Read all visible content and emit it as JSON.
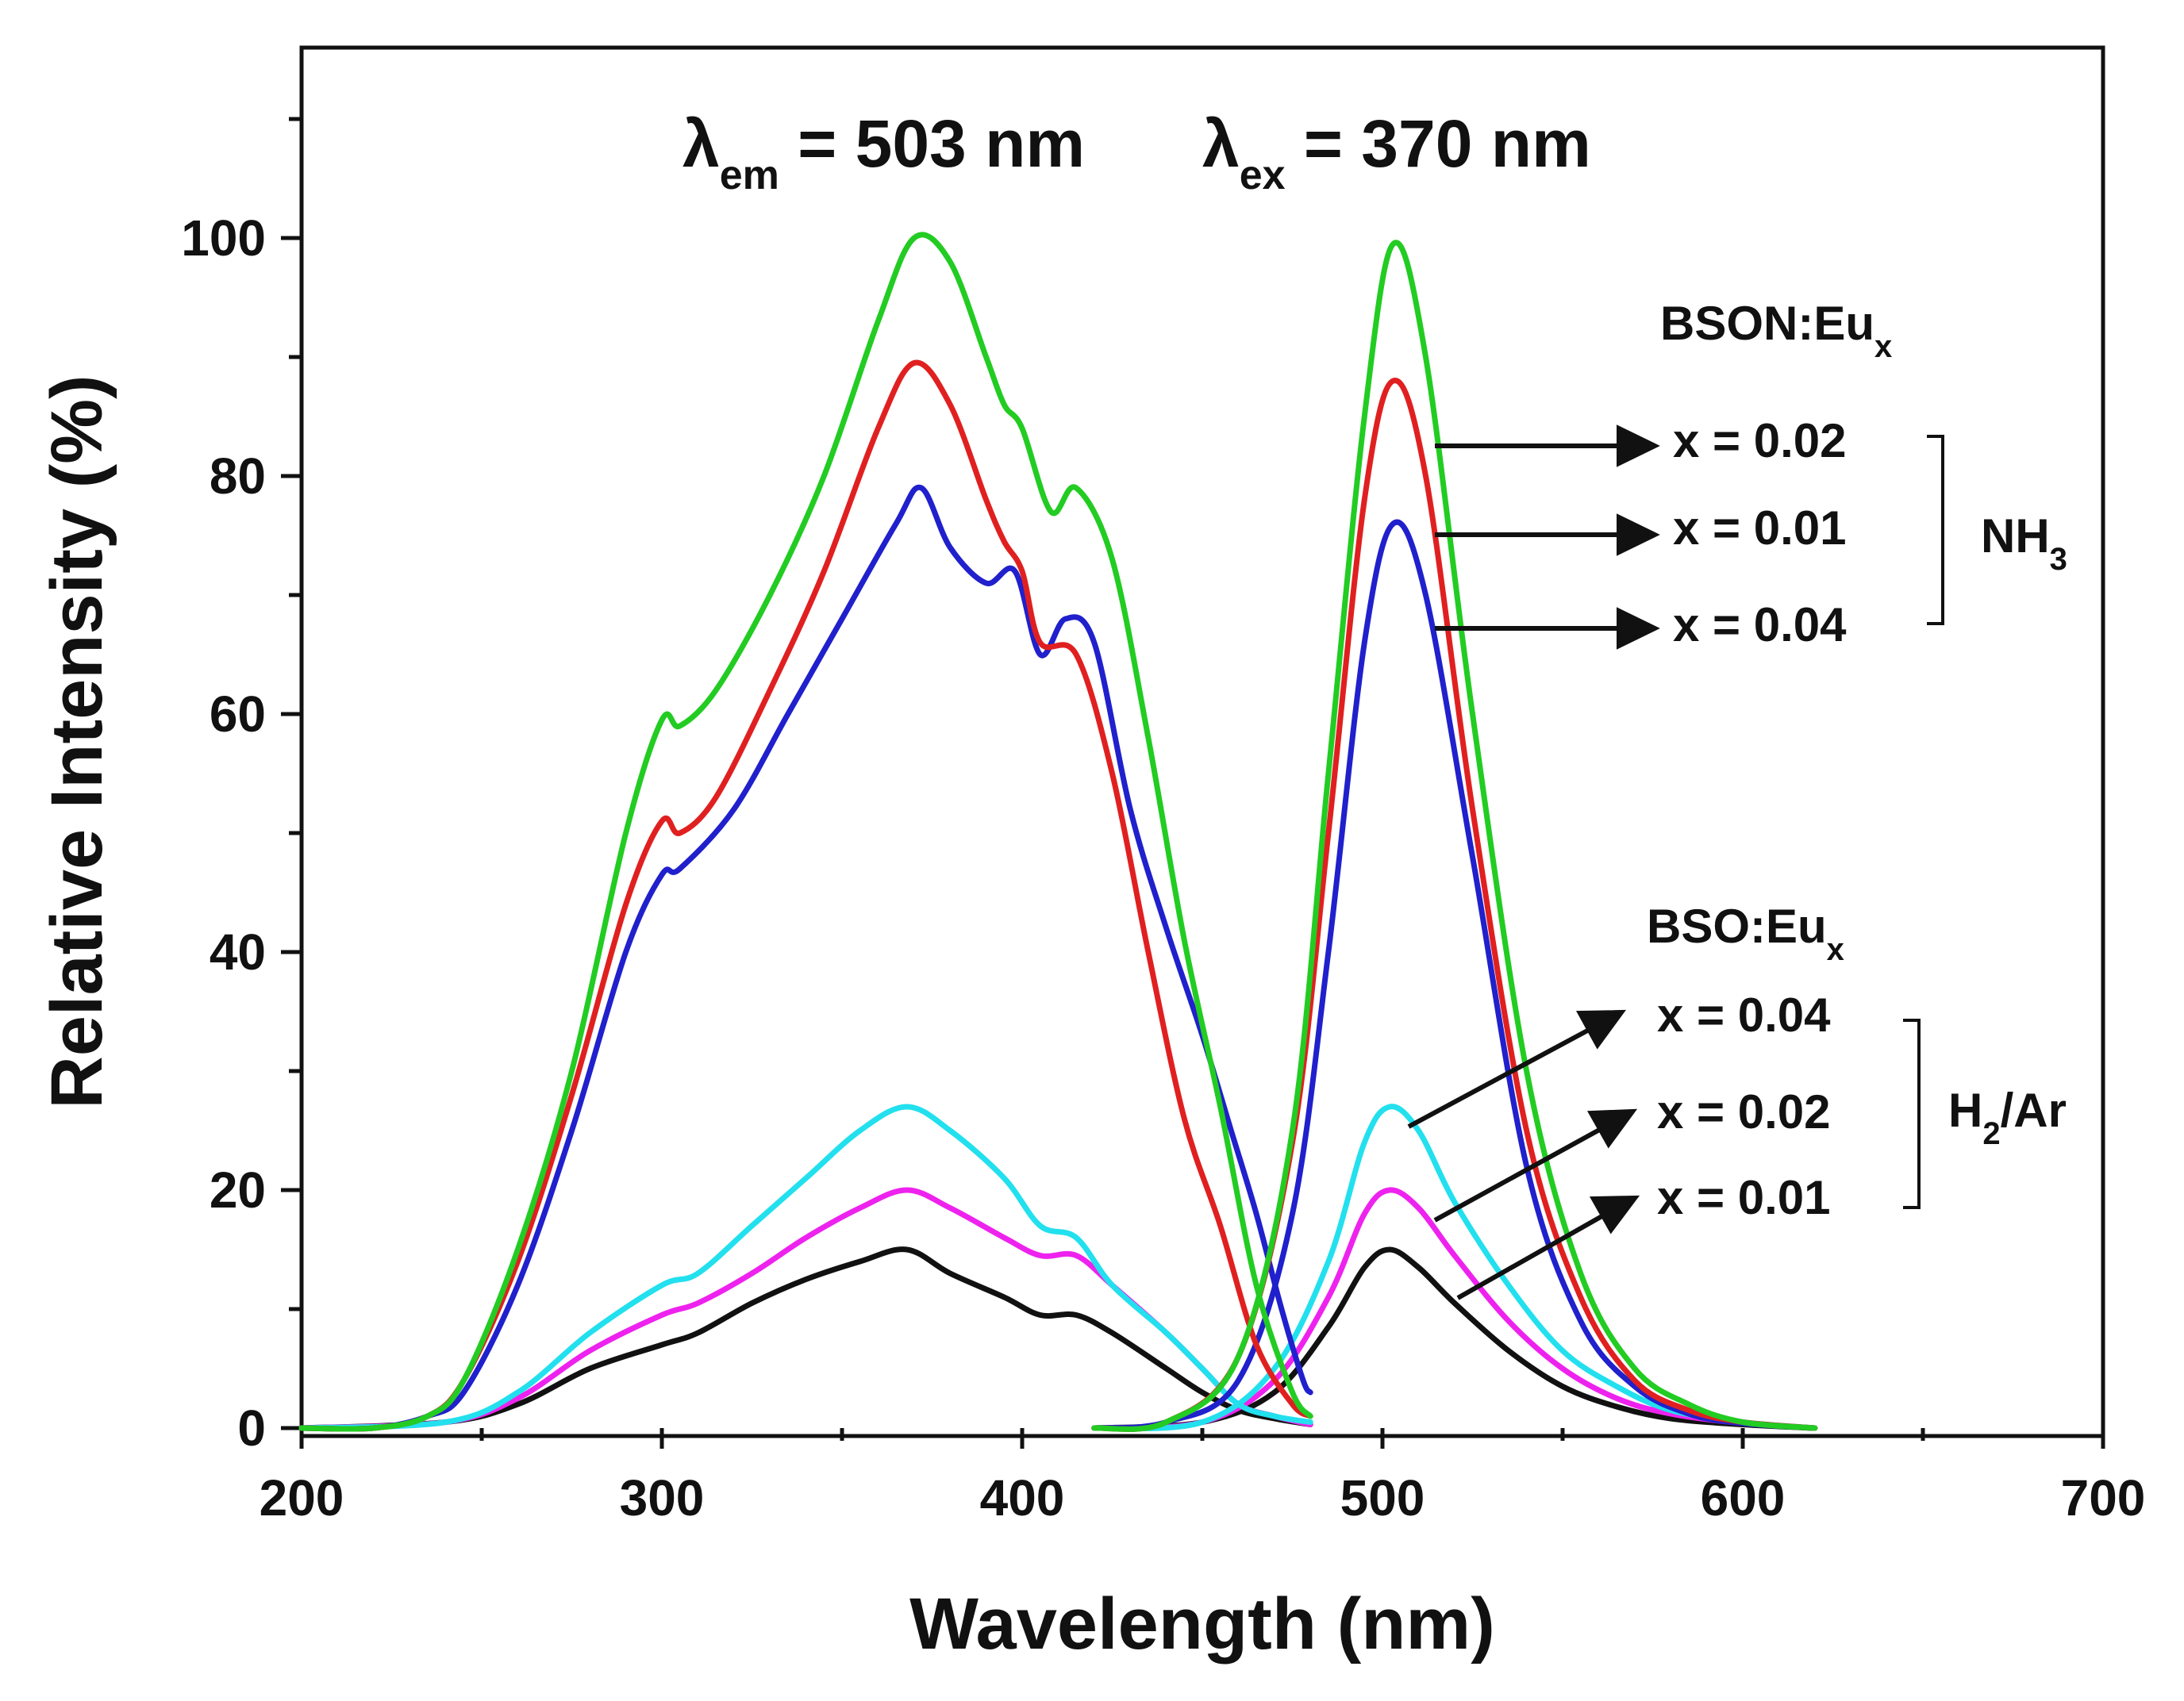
{
  "chart_data": {
    "type": "line",
    "xlabel": "Wavelength (nm)",
    "ylabel": "Relative Intensity (%)",
    "xlim": [
      200,
      700
    ],
    "ylim": [
      0,
      120
    ],
    "x_ticks": [
      200,
      300,
      400,
      500,
      600,
      700
    ],
    "y_ticks": [
      0,
      20,
      40,
      60,
      80,
      100
    ],
    "header": {
      "em": {
        "symbol": "λ",
        "sub": "em",
        "text": " = 503 nm"
      },
      "ex": {
        "symbol": "λ",
        "sub": "ex",
        "text": " = 370 nm"
      }
    },
    "groups": [
      {
        "name": "BSON:Eu",
        "name_sub": "x",
        "atmosphere": "NH",
        "atmosphere_sub": "3",
        "labels": [
          "x = 0.02",
          "x = 0.01",
          "x = 0.04"
        ]
      },
      {
        "name": "BSO:Eu",
        "name_sub": "x",
        "atmosphere": "H",
        "atmosphere_sub": "2",
        "atmosphere_suffix": "/Ar",
        "labels": [
          "x = 0.04",
          "x = 0.02",
          "x = 0.01"
        ]
      }
    ],
    "series": [
      {
        "name": "BSON:Eu x = 0.02 (NH3)",
        "color": "#22cc22",
        "excitation": [
          [
            200,
            0
          ],
          [
            220,
            0
          ],
          [
            235,
            1
          ],
          [
            245,
            4
          ],
          [
            260,
            15
          ],
          [
            275,
            30
          ],
          [
            290,
            50
          ],
          [
            300,
            59.5
          ],
          [
            305,
            59
          ],
          [
            315,
            62
          ],
          [
            330,
            70
          ],
          [
            345,
            80
          ],
          [
            360,
            93
          ],
          [
            370,
            100
          ],
          [
            380,
            98
          ],
          [
            390,
            90
          ],
          [
            395,
            86
          ],
          [
            400,
            84
          ],
          [
            408,
            77
          ],
          [
            415,
            79
          ],
          [
            425,
            73
          ],
          [
            435,
            58
          ],
          [
            445,
            41
          ],
          [
            455,
            27
          ],
          [
            465,
            12
          ],
          [
            475,
            3
          ],
          [
            480,
            1
          ]
        ],
        "emission": [
          [
            420,
            0
          ],
          [
            440,
            0.5
          ],
          [
            460,
            6
          ],
          [
            475,
            25
          ],
          [
            485,
            55
          ],
          [
            495,
            85
          ],
          [
            503,
            99.5
          ],
          [
            512,
            90
          ],
          [
            525,
            60
          ],
          [
            540,
            30
          ],
          [
            555,
            13
          ],
          [
            570,
            5
          ],
          [
            585,
            2
          ],
          [
            600,
            0.5
          ],
          [
            620,
            0
          ]
        ]
      },
      {
        "name": "BSON:Eu x = 0.01 (NH3)",
        "color": "#e02020",
        "excitation": [
          [
            200,
            0
          ],
          [
            220,
            0
          ],
          [
            235,
            1
          ],
          [
            245,
            4
          ],
          [
            260,
            14
          ],
          [
            275,
            28
          ],
          [
            290,
            44
          ],
          [
            300,
            51
          ],
          [
            305,
            50
          ],
          [
            315,
            53
          ],
          [
            330,
            62
          ],
          [
            345,
            72
          ],
          [
            360,
            84
          ],
          [
            370,
            89.5
          ],
          [
            380,
            86
          ],
          [
            390,
            78
          ],
          [
            395,
            74.5
          ],
          [
            400,
            72
          ],
          [
            405,
            66
          ],
          [
            415,
            65
          ],
          [
            425,
            55
          ],
          [
            435,
            40
          ],
          [
            445,
            26
          ],
          [
            455,
            17
          ],
          [
            465,
            7
          ],
          [
            475,
            2
          ],
          [
            480,
            1
          ]
        ],
        "emission": [
          [
            420,
            0
          ],
          [
            440,
            0.5
          ],
          [
            460,
            6
          ],
          [
            475,
            24
          ],
          [
            485,
            50
          ],
          [
            495,
            78
          ],
          [
            503,
            88
          ],
          [
            512,
            80
          ],
          [
            525,
            52
          ],
          [
            540,
            25
          ],
          [
            555,
            11
          ],
          [
            570,
            4
          ],
          [
            585,
            1.5
          ],
          [
            600,
            0.5
          ],
          [
            620,
            0
          ]
        ]
      },
      {
        "name": "BSON:Eu x = 0.04 (NH3)",
        "color": "#2020cc",
        "excitation": [
          [
            200,
            0
          ],
          [
            220,
            0
          ],
          [
            235,
            1
          ],
          [
            245,
            3
          ],
          [
            260,
            12
          ],
          [
            275,
            25
          ],
          [
            290,
            40
          ],
          [
            300,
            46.5
          ],
          [
            305,
            47
          ],
          [
            320,
            52
          ],
          [
            335,
            60
          ],
          [
            350,
            68
          ],
          [
            365,
            76
          ],
          [
            372,
            79
          ],
          [
            380,
            74
          ],
          [
            390,
            71
          ],
          [
            398,
            72
          ],
          [
            405,
            65
          ],
          [
            412,
            68
          ],
          [
            420,
            66
          ],
          [
            430,
            52
          ],
          [
            440,
            42
          ],
          [
            450,
            33
          ],
          [
            458,
            25
          ],
          [
            465,
            18
          ],
          [
            472,
            10
          ],
          [
            478,
            4
          ],
          [
            480,
            3
          ]
        ],
        "emission": [
          [
            420,
            0
          ],
          [
            440,
            0.5
          ],
          [
            460,
            4
          ],
          [
            475,
            18
          ],
          [
            485,
            40
          ],
          [
            495,
            66
          ],
          [
            503,
            76
          ],
          [
            512,
            70
          ],
          [
            525,
            48
          ],
          [
            540,
            22
          ],
          [
            555,
            9
          ],
          [
            570,
            3.5
          ],
          [
            585,
            1.2
          ],
          [
            600,
            0.4
          ],
          [
            620,
            0
          ]
        ]
      },
      {
        "name": "BSO:Eu x = 0.04 (H2/Ar)",
        "color": "#22e0ee",
        "excitation": [
          [
            200,
            0
          ],
          [
            240,
            0.5
          ],
          [
            260,
            3
          ],
          [
            280,
            8
          ],
          [
            300,
            12
          ],
          [
            310,
            13
          ],
          [
            325,
            17
          ],
          [
            340,
            21
          ],
          [
            355,
            25
          ],
          [
            368,
            27
          ],
          [
            380,
            25
          ],
          [
            395,
            21
          ],
          [
            405,
            17
          ],
          [
            415,
            16
          ],
          [
            425,
            12
          ],
          [
            440,
            8
          ],
          [
            450,
            5
          ],
          [
            460,
            2
          ],
          [
            470,
            1
          ],
          [
            480,
            0.5
          ]
        ],
        "emission": [
          [
            420,
            0
          ],
          [
            450,
            0.5
          ],
          [
            470,
            5
          ],
          [
            485,
            14
          ],
          [
            495,
            24
          ],
          [
            502,
            27
          ],
          [
            510,
            25
          ],
          [
            520,
            19
          ],
          [
            535,
            12
          ],
          [
            550,
            6.5
          ],
          [
            565,
            3.5
          ],
          [
            580,
            1.5
          ],
          [
            600,
            0.5
          ],
          [
            620,
            0
          ]
        ]
      },
      {
        "name": "BSO:Eu x = 0.02 (H2/Ar)",
        "color": "#ee22ee",
        "excitation": [
          [
            200,
            0
          ],
          [
            240,
            0.5
          ],
          [
            260,
            2.5
          ],
          [
            280,
            6.5
          ],
          [
            300,
            9.5
          ],
          [
            310,
            10.5
          ],
          [
            325,
            13
          ],
          [
            340,
            16
          ],
          [
            355,
            18.5
          ],
          [
            368,
            20
          ],
          [
            380,
            18.5
          ],
          [
            395,
            16
          ],
          [
            405,
            14.5
          ],
          [
            415,
            14.5
          ],
          [
            425,
            12
          ],
          [
            440,
            8
          ],
          [
            450,
            5
          ],
          [
            460,
            2
          ],
          [
            470,
            1
          ],
          [
            480,
            0.3
          ]
        ],
        "emission": [
          [
            420,
            0
          ],
          [
            450,
            0.5
          ],
          [
            470,
            4
          ],
          [
            485,
            11
          ],
          [
            495,
            18
          ],
          [
            502,
            20
          ],
          [
            510,
            18.5
          ],
          [
            520,
            14.5
          ],
          [
            535,
            9
          ],
          [
            550,
            5
          ],
          [
            565,
            2.5
          ],
          [
            580,
            1.2
          ],
          [
            600,
            0.4
          ],
          [
            620,
            0
          ]
        ]
      },
      {
        "name": "BSO:Eu x = 0.01 (H2/Ar)",
        "color": "#111111",
        "excitation": [
          [
            200,
            0
          ],
          [
            240,
            0.5
          ],
          [
            260,
            2
          ],
          [
            280,
            5
          ],
          [
            300,
            7
          ],
          [
            310,
            8
          ],
          [
            325,
            10.5
          ],
          [
            340,
            12.5
          ],
          [
            355,
            14
          ],
          [
            368,
            15
          ],
          [
            380,
            13
          ],
          [
            395,
            11
          ],
          [
            405,
            9.5
          ],
          [
            415,
            9.5
          ],
          [
            425,
            8
          ],
          [
            440,
            5
          ],
          [
            450,
            3
          ],
          [
            460,
            1.5
          ],
          [
            470,
            0.8
          ],
          [
            480,
            0.3
          ]
        ],
        "emission": [
          [
            420,
            0
          ],
          [
            450,
            0.5
          ],
          [
            470,
            3
          ],
          [
            485,
            8.5
          ],
          [
            495,
            13.5
          ],
          [
            502,
            15
          ],
          [
            510,
            13.5
          ],
          [
            520,
            10.5
          ],
          [
            535,
            6.5
          ],
          [
            550,
            3.5
          ],
          [
            565,
            1.8
          ],
          [
            580,
            0.8
          ],
          [
            600,
            0.3
          ],
          [
            620,
            0
          ]
        ]
      }
    ]
  }
}
